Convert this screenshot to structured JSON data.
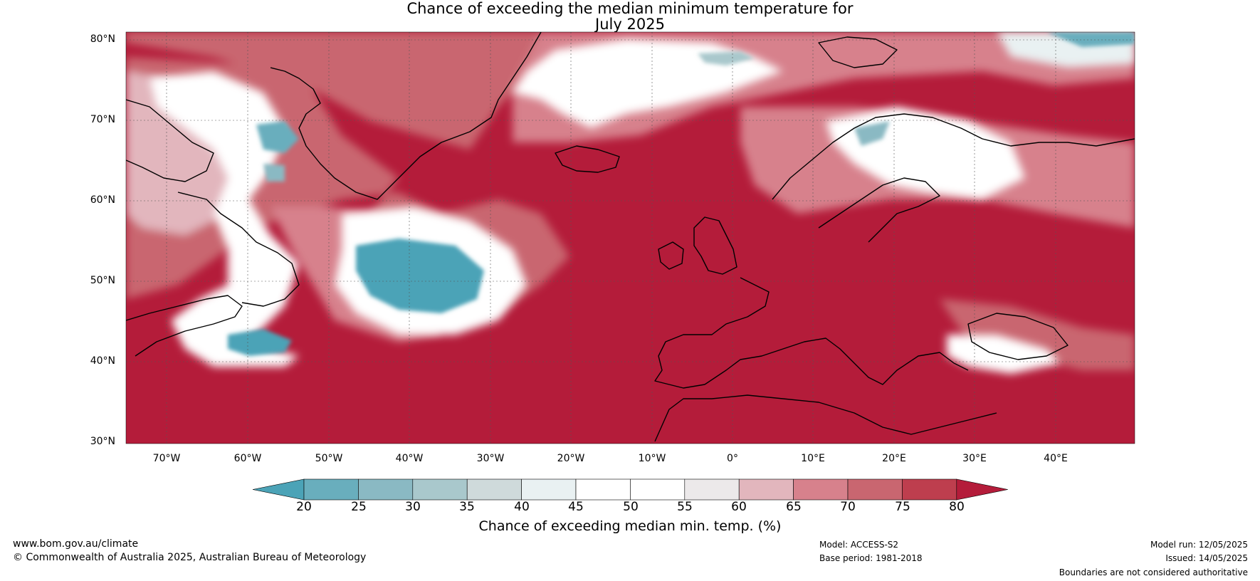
{
  "title_line1": "Chance of exceeding the median minimum temperature for",
  "title_line2": "July 2025",
  "lat_labels": [
    "80°N",
    "70°N",
    "60°N",
    "50°N",
    "40°N",
    "30°N"
  ],
  "lon_labels": [
    "70°W",
    "60°W",
    "50°W",
    "40°W",
    "30°W",
    "20°W",
    "10°W",
    "0°",
    "10°E",
    "20°E",
    "30°E",
    "40°E"
  ],
  "colorbar": {
    "ticks": [
      "20",
      "25",
      "30",
      "35",
      "40",
      "45",
      "50",
      "55",
      "60",
      "65",
      "70",
      "75",
      "80"
    ],
    "colors": [
      "#4ba3b7",
      "#69aebd",
      "#8ab9c3",
      "#a9c8cc",
      "#cfdadb",
      "#e9f1f2",
      "#ffffff",
      "#ffffff",
      "#ece9ea",
      "#e2b6bd",
      "#d7818c",
      "#c96670",
      "#be3e4e",
      "#b41c3a"
    ],
    "label": "Chance of exceeding median min. temp. (%)"
  },
  "footer": {
    "website": "www.bom.gov.au/climate",
    "copyright": "© Commonwealth of Australia 2025, Australian Bureau of Meteorology",
    "model": "Model: ACCESS-S2",
    "base_period": "Base period: 1981-2018",
    "model_run": "Model run: 12/05/2025",
    "issued": "Issued: 14/05/2025",
    "disclaimer": "Boundaries are not considered authoritative"
  }
}
